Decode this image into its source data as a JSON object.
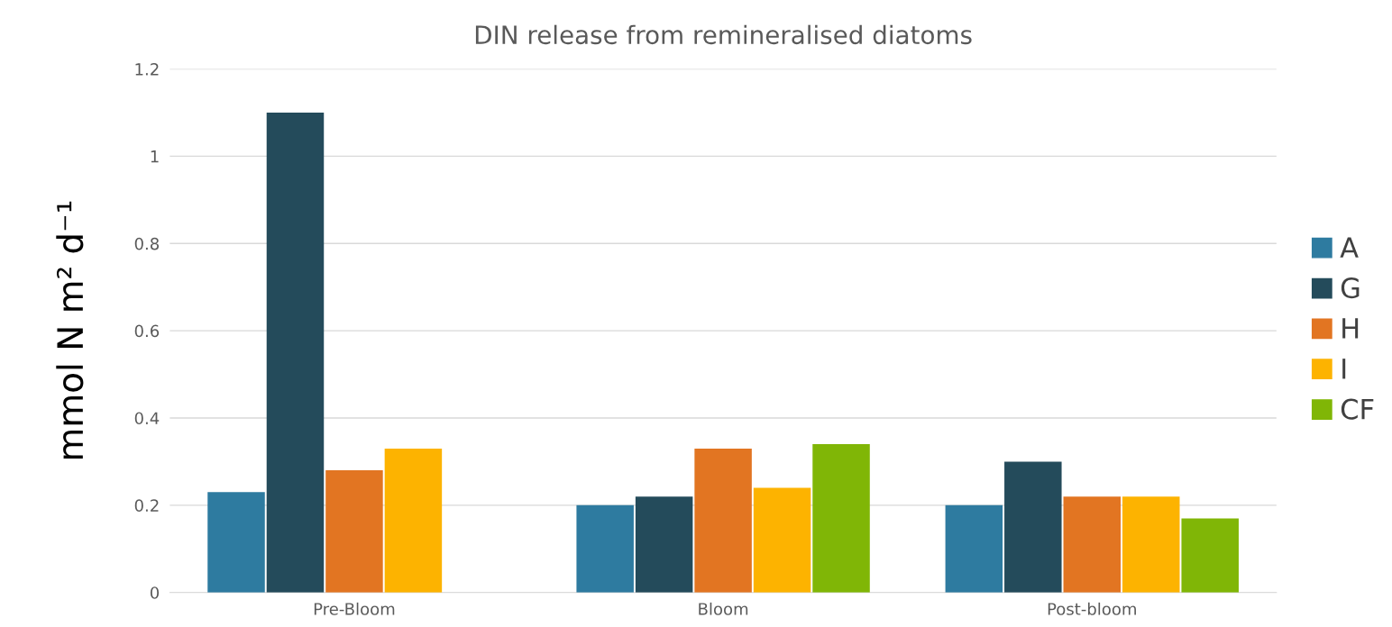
{
  "chart_data": {
    "type": "bar",
    "title": "DIN release from remineralised diatoms",
    "ylabel": "mmol N m² d⁻¹",
    "categories": [
      "Pre-Bloom",
      "Bloom",
      "Post-bloom"
    ],
    "series": [
      {
        "name": "A",
        "color": "#2e7ba0",
        "values": [
          0.23,
          0.2,
          0.2
        ]
      },
      {
        "name": "G",
        "color": "#244b5b",
        "values": [
          1.1,
          0.22,
          0.3
        ]
      },
      {
        "name": "H",
        "color": "#e27522",
        "values": [
          0.28,
          0.33,
          0.22
        ]
      },
      {
        "name": "I",
        "color": "#fdb300",
        "values": [
          0.33,
          0.24,
          0.22
        ]
      },
      {
        "name": "CF",
        "color": "#80b606",
        "values": [
          null,
          0.34,
          0.17
        ]
      }
    ],
    "ylim": [
      0,
      1.2
    ],
    "yticks": [
      0,
      0.2,
      0.4,
      0.6,
      0.8,
      1,
      1.2
    ],
    "grid": "y",
    "legend": "right"
  }
}
